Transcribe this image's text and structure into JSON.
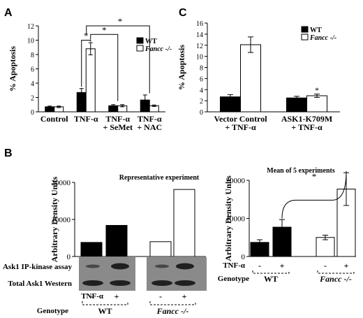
{
  "panel_labels": {
    "A": "A",
    "B": "B",
    "C": "C"
  },
  "colors": {
    "wt": "#000000",
    "fancc": "#ffffff",
    "stroke": "#000000",
    "blot_bg": "#8a8a8a",
    "blot_band": "#1a1a1a"
  },
  "chart_data": [
    {
      "id": "A",
      "type": "bar",
      "ylabel": "% Apoptosis",
      "ylim": [
        0,
        12
      ],
      "yticks": [
        0,
        2,
        4,
        6,
        8,
        10,
        12
      ],
      "categories": [
        "Control",
        "TNF-α",
        "TNF-α\n+ SeMet",
        "TNF-α\n+ NAC"
      ],
      "series": [
        {
          "name": "WT",
          "values": [
            0.7,
            2.7,
            0.85,
            1.65
          ],
          "errors": [
            0.1,
            0.55,
            0.15,
            0.7
          ]
        },
        {
          "name": "Fancc -/-",
          "values": [
            0.7,
            8.8,
            0.85,
            0.85
          ],
          "errors": [
            0.1,
            0.85,
            0.15,
            0.1
          ]
        }
      ],
      "legend": "top-right",
      "annotations": [
        "*",
        "*",
        "*"
      ]
    },
    {
      "id": "C",
      "type": "bar",
      "ylabel": "% Apoptosis",
      "ylim": [
        0,
        16
      ],
      "yticks": [
        0,
        2,
        4,
        6,
        8,
        10,
        12,
        14,
        16
      ],
      "categories": [
        "Vector Control\n+ TNF-α",
        "ASK1-K709M\n+ TNF-α"
      ],
      "series": [
        {
          "name": "WT",
          "values": [
            2.7,
            2.5
          ],
          "errors": [
            0.4,
            0.3
          ]
        },
        {
          "name": "Fancc -/-",
          "values": [
            12.1,
            2.9
          ],
          "errors": [
            1.4,
            0.3
          ]
        }
      ],
      "legend": "top-right",
      "annotations": [
        "*"
      ]
    },
    {
      "id": "B-left",
      "type": "bar",
      "title": "Representative experiment",
      "ylabel": "Arbitrary Density Units",
      "ylim": [
        0,
        20000
      ],
      "yticks": [
        0,
        10000,
        20000
      ],
      "categories": [
        "WT -",
        "WT +",
        "Fancc -/- -",
        "Fancc -/- +"
      ],
      "values": [
        3800,
        8400,
        4000,
        18100
      ],
      "fills": [
        "wt",
        "wt",
        "fancc",
        "fancc"
      ]
    },
    {
      "id": "B-right",
      "type": "bar",
      "title": "Mean of 5 experiments",
      "ylabel": "Arbitrary Density Units",
      "ylim": [
        0,
        20000
      ],
      "yticks": [
        0,
        10000,
        20000
      ],
      "categories": [
        "WT -",
        "WT +",
        "Fancc -/- -",
        "Fancc -/- +"
      ],
      "values": [
        3700,
        7700,
        5000,
        17700
      ],
      "errors": [
        700,
        2000,
        600,
        4300
      ],
      "fills": [
        "wt",
        "wt",
        "fancc",
        "fancc"
      ],
      "annotations": [
        "*"
      ]
    }
  ],
  "blot": {
    "rows": [
      "Ask1 IP-kinase assay",
      "Total Ask1 Western"
    ],
    "treatment_label": "TNF-α",
    "genotype_label": "Genotype",
    "signs": [
      "-",
      "+",
      "-",
      "+"
    ],
    "genotypes": [
      "WT",
      "Fancc -/-"
    ]
  },
  "right_treatment": {
    "treatment_label": "TNF-α",
    "genotype_label": "Genotype",
    "signs": [
      "-",
      "+",
      "-",
      "+"
    ],
    "genotypes": [
      "WT",
      "Fancc -/-"
    ]
  }
}
